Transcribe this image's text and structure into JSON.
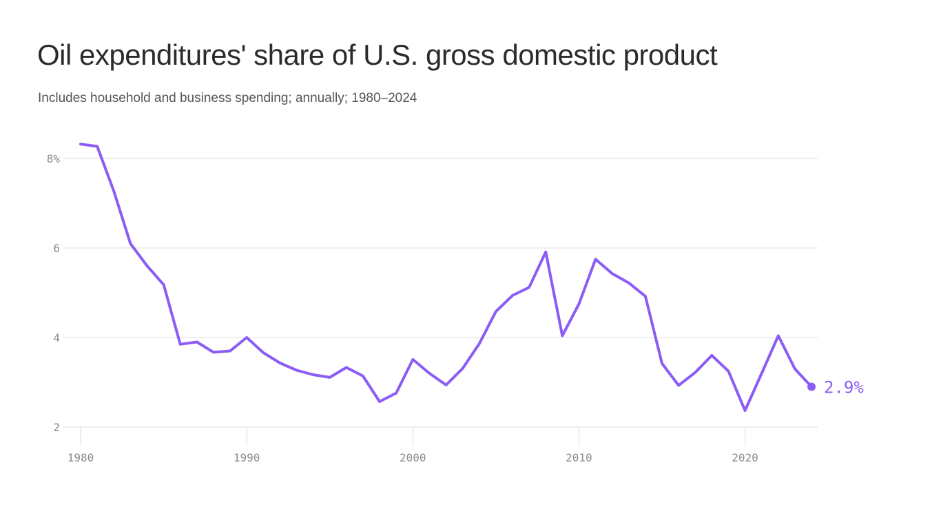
{
  "chart_data": {
    "type": "line",
    "title": "Oil expenditures' share of U.S. gross domestic product",
    "subtitle": "Includes household and business spending; annually; 1980–2024",
    "xlabel": "",
    "ylabel": "",
    "xlim": [
      1980,
      2024
    ],
    "ylim": [
      2,
      8
    ],
    "x_ticks": [
      {
        "value": 1980,
        "label": "1980"
      },
      {
        "value": 1990,
        "label": "1990"
      },
      {
        "value": 2000,
        "label": "2000"
      },
      {
        "value": 2010,
        "label": "2010"
      },
      {
        "value": 2020,
        "label": "2020"
      }
    ],
    "y_ticks": [
      {
        "value": 8,
        "label": "8%"
      },
      {
        "value": 6,
        "label": "6"
      },
      {
        "value": 4,
        "label": "4"
      },
      {
        "value": 2,
        "label": "2"
      }
    ],
    "grid": "horizontal",
    "line_color": "#8b5cf6",
    "end_label": "2.9%",
    "x": [
      1980,
      1981,
      1982,
      1983,
      1984,
      1985,
      1986,
      1987,
      1988,
      1989,
      1990,
      1991,
      1992,
      1993,
      1994,
      1995,
      1996,
      1997,
      1998,
      1999,
      2000,
      2001,
      2002,
      2003,
      2004,
      2005,
      2006,
      2007,
      2008,
      2009,
      2010,
      2011,
      2012,
      2013,
      2014,
      2015,
      2016,
      2017,
      2018,
      2019,
      2020,
      2021,
      2022,
      2023,
      2024
    ],
    "series": [
      {
        "values": [
          8.32,
          8.27,
          7.27,
          6.1,
          5.6,
          5.18,
          3.85,
          3.9,
          3.67,
          3.7,
          4.0,
          3.66,
          3.43,
          3.27,
          3.17,
          3.11,
          3.33,
          3.14,
          2.57,
          2.76,
          3.51,
          3.2,
          2.94,
          3.31,
          3.86,
          4.58,
          4.94,
          5.12,
          5.91,
          4.04,
          4.75,
          5.75,
          5.43,
          5.22,
          4.92,
          3.42,
          2.93,
          3.22,
          3.6,
          3.25,
          2.37,
          3.2,
          4.04,
          3.3,
          2.9
        ]
      }
    ]
  }
}
